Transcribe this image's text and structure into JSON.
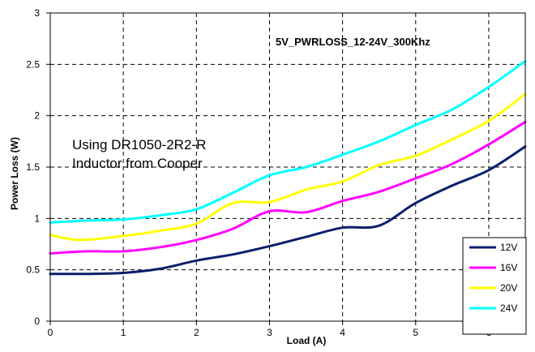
{
  "chart_data": {
    "type": "line",
    "title": "5V_PWRLOSS_12-24V_300Khz",
    "annotation": [
      "Using DR1050-2R2-R",
      "Inductor from Cooper"
    ],
    "xlabel": "Load (A)",
    "ylabel": "Power Loss (W)",
    "xlim": [
      0,
      6.5
    ],
    "ylim": [
      0,
      3
    ],
    "xticks": [
      0,
      1,
      2,
      3,
      4,
      5,
      6
    ],
    "yticks": [
      0,
      0.5,
      1,
      1.5,
      2,
      2.5,
      3
    ],
    "grid": true,
    "legend_position": "bottom-right",
    "series": [
      {
        "name": "12V",
        "color": "#0b1f6b",
        "points": [
          [
            0,
            0.46
          ],
          [
            0.5,
            0.46
          ],
          [
            1,
            0.47
          ],
          [
            1.5,
            0.51
          ],
          [
            2,
            0.59
          ],
          [
            2.5,
            0.65
          ],
          [
            3,
            0.73
          ],
          [
            3.5,
            0.82
          ],
          [
            4,
            0.91
          ],
          [
            4.5,
            0.93
          ],
          [
            5,
            1.15
          ],
          [
            5.5,
            1.32
          ],
          [
            6,
            1.47
          ],
          [
            6.5,
            1.7
          ]
        ]
      },
      {
        "name": "16V",
        "color": "#ff00ff",
        "points": [
          [
            0,
            0.66
          ],
          [
            0.5,
            0.68
          ],
          [
            1,
            0.68
          ],
          [
            1.5,
            0.72
          ],
          [
            2,
            0.79
          ],
          [
            2.5,
            0.9
          ],
          [
            3,
            1.07
          ],
          [
            3.5,
            1.06
          ],
          [
            4,
            1.17
          ],
          [
            4.5,
            1.26
          ],
          [
            5,
            1.39
          ],
          [
            5.5,
            1.53
          ],
          [
            6,
            1.72
          ],
          [
            6.5,
            1.94
          ]
        ]
      },
      {
        "name": "20V",
        "color": "#ffff00",
        "points": [
          [
            0,
            0.84
          ],
          [
            0.4,
            0.79
          ],
          [
            1,
            0.83
          ],
          [
            1.5,
            0.88
          ],
          [
            2,
            0.95
          ],
          [
            2.5,
            1.15
          ],
          [
            3,
            1.16
          ],
          [
            3.5,
            1.28
          ],
          [
            4,
            1.36
          ],
          [
            4.5,
            1.52
          ],
          [
            5,
            1.61
          ],
          [
            5.5,
            1.77
          ],
          [
            6,
            1.95
          ],
          [
            6.5,
            2.21
          ]
        ]
      },
      {
        "name": "24V",
        "color": "#00ffff",
        "points": [
          [
            0,
            0.96
          ],
          [
            0.5,
            0.98
          ],
          [
            1,
            0.99
          ],
          [
            1.5,
            1.03
          ],
          [
            2,
            1.09
          ],
          [
            2.5,
            1.25
          ],
          [
            3,
            1.42
          ],
          [
            3.5,
            1.5
          ],
          [
            4,
            1.62
          ],
          [
            4.5,
            1.75
          ],
          [
            5,
            1.91
          ],
          [
            5.5,
            2.06
          ],
          [
            6,
            2.28
          ],
          [
            6.5,
            2.53
          ]
        ]
      }
    ]
  }
}
